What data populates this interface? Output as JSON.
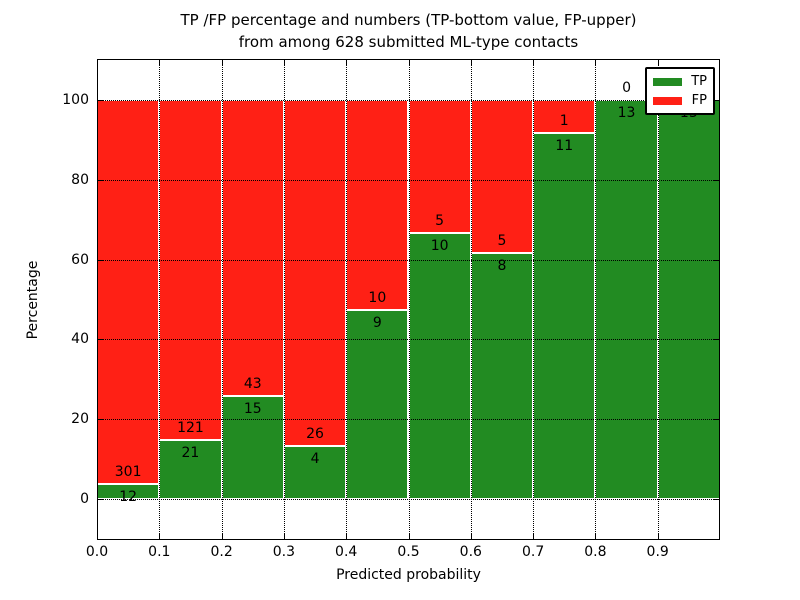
{
  "title": {
    "line1": "TP /FP percentage and numbers (TP-bottom value, FP-upper)",
    "line2": "from among 628 submitted ML-type contacts"
  },
  "axes": {
    "ylabel": "Percentage",
    "xlabel": "Predicted probability",
    "y_ticks": [
      "0",
      "20",
      "40",
      "60",
      "80",
      "100"
    ],
    "x_ticks": [
      "0.0",
      "0.1",
      "0.2",
      "0.3",
      "0.4",
      "0.5",
      "0.6",
      "0.7",
      "0.8",
      "0.9"
    ]
  },
  "legend": {
    "items": [
      {
        "label": "TP",
        "color": "#228B22"
      },
      {
        "label": "FP",
        "color": "#FF2015"
      }
    ]
  },
  "colors": {
    "tp_green": "#228B22",
    "fp_red": "#FF2015",
    "bar_edge": "#ffffff",
    "grid": "#000000"
  },
  "chart_data": {
    "type": "bar",
    "stacked": true,
    "normalized_to_percent": true,
    "title": "TP /FP percentage and numbers (TP-bottom value, FP-upper) from among 628 submitted ML-type contacts",
    "xlabel": "Predicted probability",
    "ylabel": "Percentage",
    "xlim": [
      0.0,
      1.0
    ],
    "ylim": [
      -10.5,
      110.5
    ],
    "grid": "dotted",
    "legend_position": "upper right",
    "total_contacts": 628,
    "categories": [
      "0.0-0.1",
      "0.1-0.2",
      "0.2-0.3",
      "0.3-0.4",
      "0.4-0.5",
      "0.5-0.6",
      "0.6-0.7",
      "0.7-0.8",
      "0.8-0.9",
      "0.9-1.0"
    ],
    "bin_edges": [
      0.0,
      0.1,
      0.2,
      0.3,
      0.4,
      0.5,
      0.6,
      0.7,
      0.8,
      0.9,
      1.0
    ],
    "series": [
      {
        "name": "TP",
        "color": "#228B22",
        "counts": [
          12,
          21,
          15,
          4,
          9,
          10,
          8,
          11,
          13,
          13
        ],
        "percent": [
          3.83,
          14.79,
          25.86,
          13.33,
          47.37,
          66.67,
          61.54,
          91.67,
          100.0,
          100.0
        ]
      },
      {
        "name": "FP",
        "color": "#FF2015",
        "counts": [
          301,
          121,
          43,
          26,
          10,
          5,
          5,
          1,
          0,
          0
        ],
        "percent": [
          96.17,
          85.21,
          74.14,
          86.67,
          52.63,
          33.33,
          38.46,
          8.33,
          0.0,
          0.0
        ]
      }
    ]
  }
}
